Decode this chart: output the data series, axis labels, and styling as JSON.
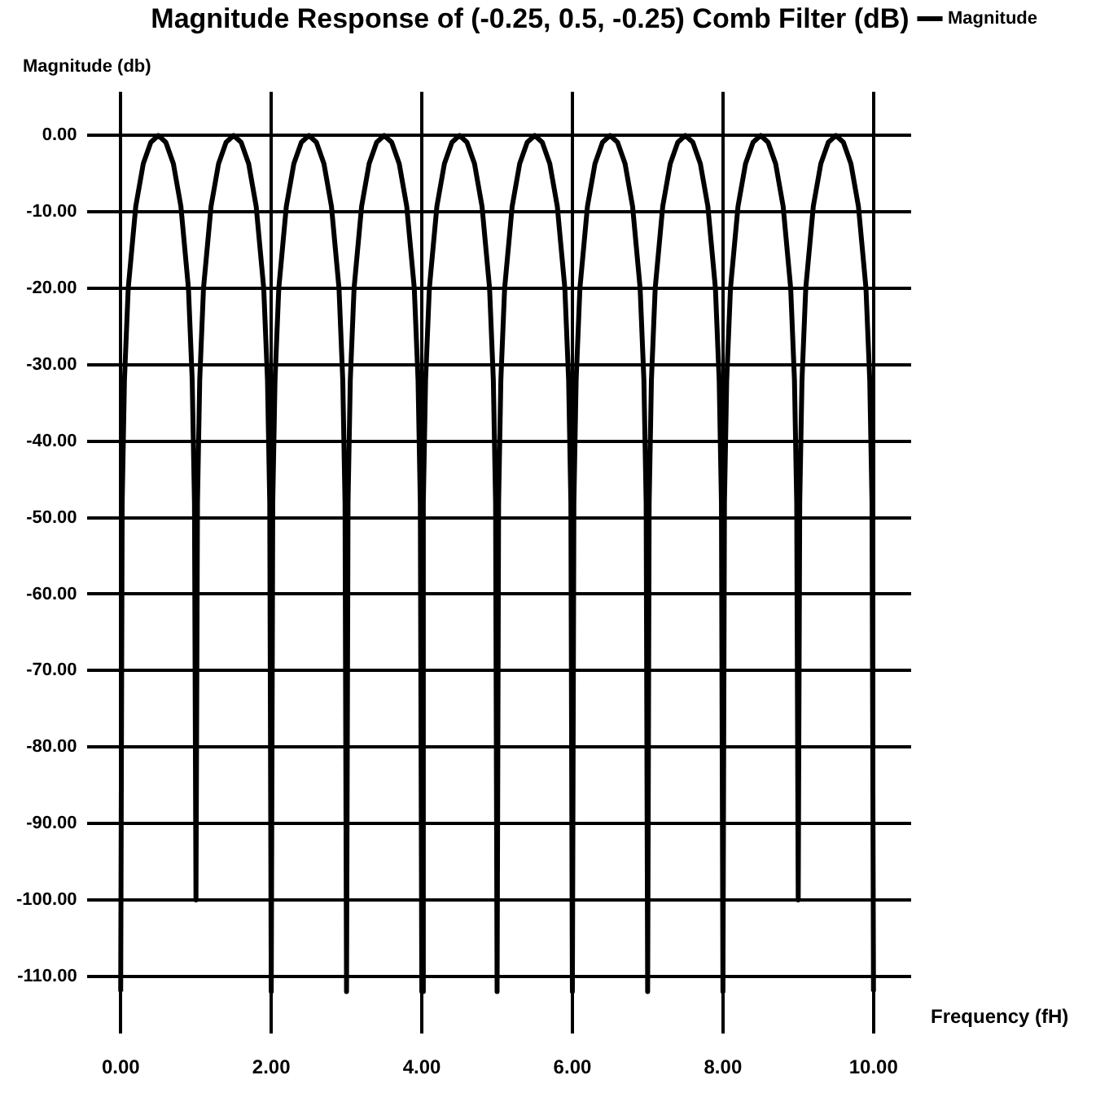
{
  "chart_data": {
    "type": "line",
    "title": "Magnitude Response of (-0.25, 0.5, -0.25) Comb Filter (dB)",
    "xlabel": "Frequency (fH)",
    "ylabel": "Magnitude (db)",
    "xlim": [
      -0.45,
      10.5
    ],
    "ylim": [
      -117.5,
      5.7
    ],
    "xticks": [
      {
        "value": 0,
        "label": "0.00"
      },
      {
        "value": 2,
        "label": "2.00"
      },
      {
        "value": 4,
        "label": "4.00"
      },
      {
        "value": 6,
        "label": "6.00"
      },
      {
        "value": 8,
        "label": "8.00"
      },
      {
        "value": 10,
        "label": "10.00"
      }
    ],
    "yticks": [
      {
        "value": 0,
        "label": "0.00"
      },
      {
        "value": -10,
        "label": "-10.00"
      },
      {
        "value": -20,
        "label": "-20.00"
      },
      {
        "value": -30,
        "label": "-30.00"
      },
      {
        "value": -40,
        "label": "-40.00"
      },
      {
        "value": -50,
        "label": "-50.00"
      },
      {
        "value": -60,
        "label": "-60.00"
      },
      {
        "value": -70,
        "label": "-70.00"
      },
      {
        "value": -80,
        "label": "-80.00"
      },
      {
        "value": -90,
        "label": "-90.00"
      },
      {
        "value": -100,
        "label": "-100.00"
      },
      {
        "value": -110,
        "label": "-110.00"
      }
    ],
    "grid": true,
    "legend": "top right",
    "marker": "none",
    "line_style": "solid",
    "series": [
      {
        "name": "Magnitude",
        "color": "#000000",
        "x": [
          0,
          0.02,
          0.05,
          0.1,
          0.2,
          0.3,
          0.4,
          0.5,
          0.6,
          0.7,
          0.8,
          0.9,
          0.95,
          0.98,
          1,
          1.02,
          1.05,
          1.1,
          1.2,
          1.3,
          1.4,
          1.5,
          1.6,
          1.7,
          1.8,
          1.9,
          1.95,
          1.98,
          2,
          2.02,
          2.05,
          2.1,
          2.2,
          2.3,
          2.4,
          2.5,
          2.6,
          2.7,
          2.8,
          2.9,
          2.95,
          2.98,
          3,
          3.02,
          3.05,
          3.1,
          3.2,
          3.3,
          3.4,
          3.5,
          3.6,
          3.7,
          3.8,
          3.9,
          3.95,
          3.98,
          4,
          4.02,
          4.05,
          4.1,
          4.2,
          4.3,
          4.4,
          4.5,
          4.6,
          4.7,
          4.8,
          4.9,
          4.95,
          4.98,
          5,
          5.02,
          5.05,
          5.1,
          5.2,
          5.3,
          5.4,
          5.5,
          5.6,
          5.7,
          5.8,
          5.9,
          5.95,
          5.98,
          6,
          6.02,
          6.05,
          6.1,
          6.2,
          6.3,
          6.4,
          6.5,
          6.6,
          6.7,
          6.8,
          6.9,
          6.95,
          6.98,
          7,
          7.02,
          7.05,
          7.1,
          7.2,
          7.3,
          7.4,
          7.5,
          7.6,
          7.7,
          7.8,
          7.9,
          7.95,
          7.98,
          8,
          8.02,
          8.05,
          8.1,
          8.2,
          8.3,
          8.4,
          8.5,
          8.6,
          8.7,
          8.8,
          8.9,
          8.95,
          8.98,
          9,
          9.02,
          9.05,
          9.1,
          9.2,
          9.3,
          9.4,
          9.5,
          9.6,
          9.7,
          9.8,
          9.9,
          9.95,
          9.98,
          10
        ],
        "values": [
          -112,
          -48,
          -32,
          -20,
          -9.3,
          -3.7,
          -0.9,
          0,
          -0.9,
          -3.7,
          -9.3,
          -20,
          -32,
          -48,
          -100,
          -48,
          -32,
          -20,
          -9.3,
          -3.7,
          -0.9,
          0,
          -0.9,
          -3.7,
          -9.3,
          -20,
          -32,
          -48,
          -112,
          -48,
          -32,
          -20,
          -9.3,
          -3.7,
          -0.9,
          0,
          -0.9,
          -3.7,
          -9.3,
          -20,
          -32,
          -48,
          -112,
          -48,
          -32,
          -20,
          -9.3,
          -3.7,
          -0.9,
          0,
          -0.9,
          -3.7,
          -9.3,
          -20,
          -32,
          -48,
          -112,
          -48,
          -32,
          -20,
          -9.3,
          -3.7,
          -0.9,
          0,
          -0.9,
          -3.7,
          -9.3,
          -20,
          -32,
          -48,
          -112,
          -48,
          -32,
          -20,
          -9.3,
          -3.7,
          -0.9,
          0,
          -0.9,
          -3.7,
          -9.3,
          -20,
          -32,
          -48,
          -112,
          -48,
          -32,
          -20,
          -9.3,
          -3.7,
          -0.9,
          0,
          -0.9,
          -3.7,
          -9.3,
          -20,
          -32,
          -48,
          -112,
          -48,
          -32,
          -20,
          -9.3,
          -3.7,
          -0.9,
          0,
          -0.9,
          -3.7,
          -9.3,
          -20,
          -32,
          -48,
          -112,
          -48,
          -32,
          -20,
          -9.3,
          -3.7,
          -0.9,
          0,
          -0.9,
          -3.7,
          -9.3,
          -20,
          -32,
          -48,
          -100,
          -48,
          -32,
          -20,
          -9.3,
          -3.7,
          -0.9,
          0,
          -0.9,
          -3.7,
          -9.3,
          -20,
          -32,
          -48,
          -112
        ]
      }
    ]
  }
}
